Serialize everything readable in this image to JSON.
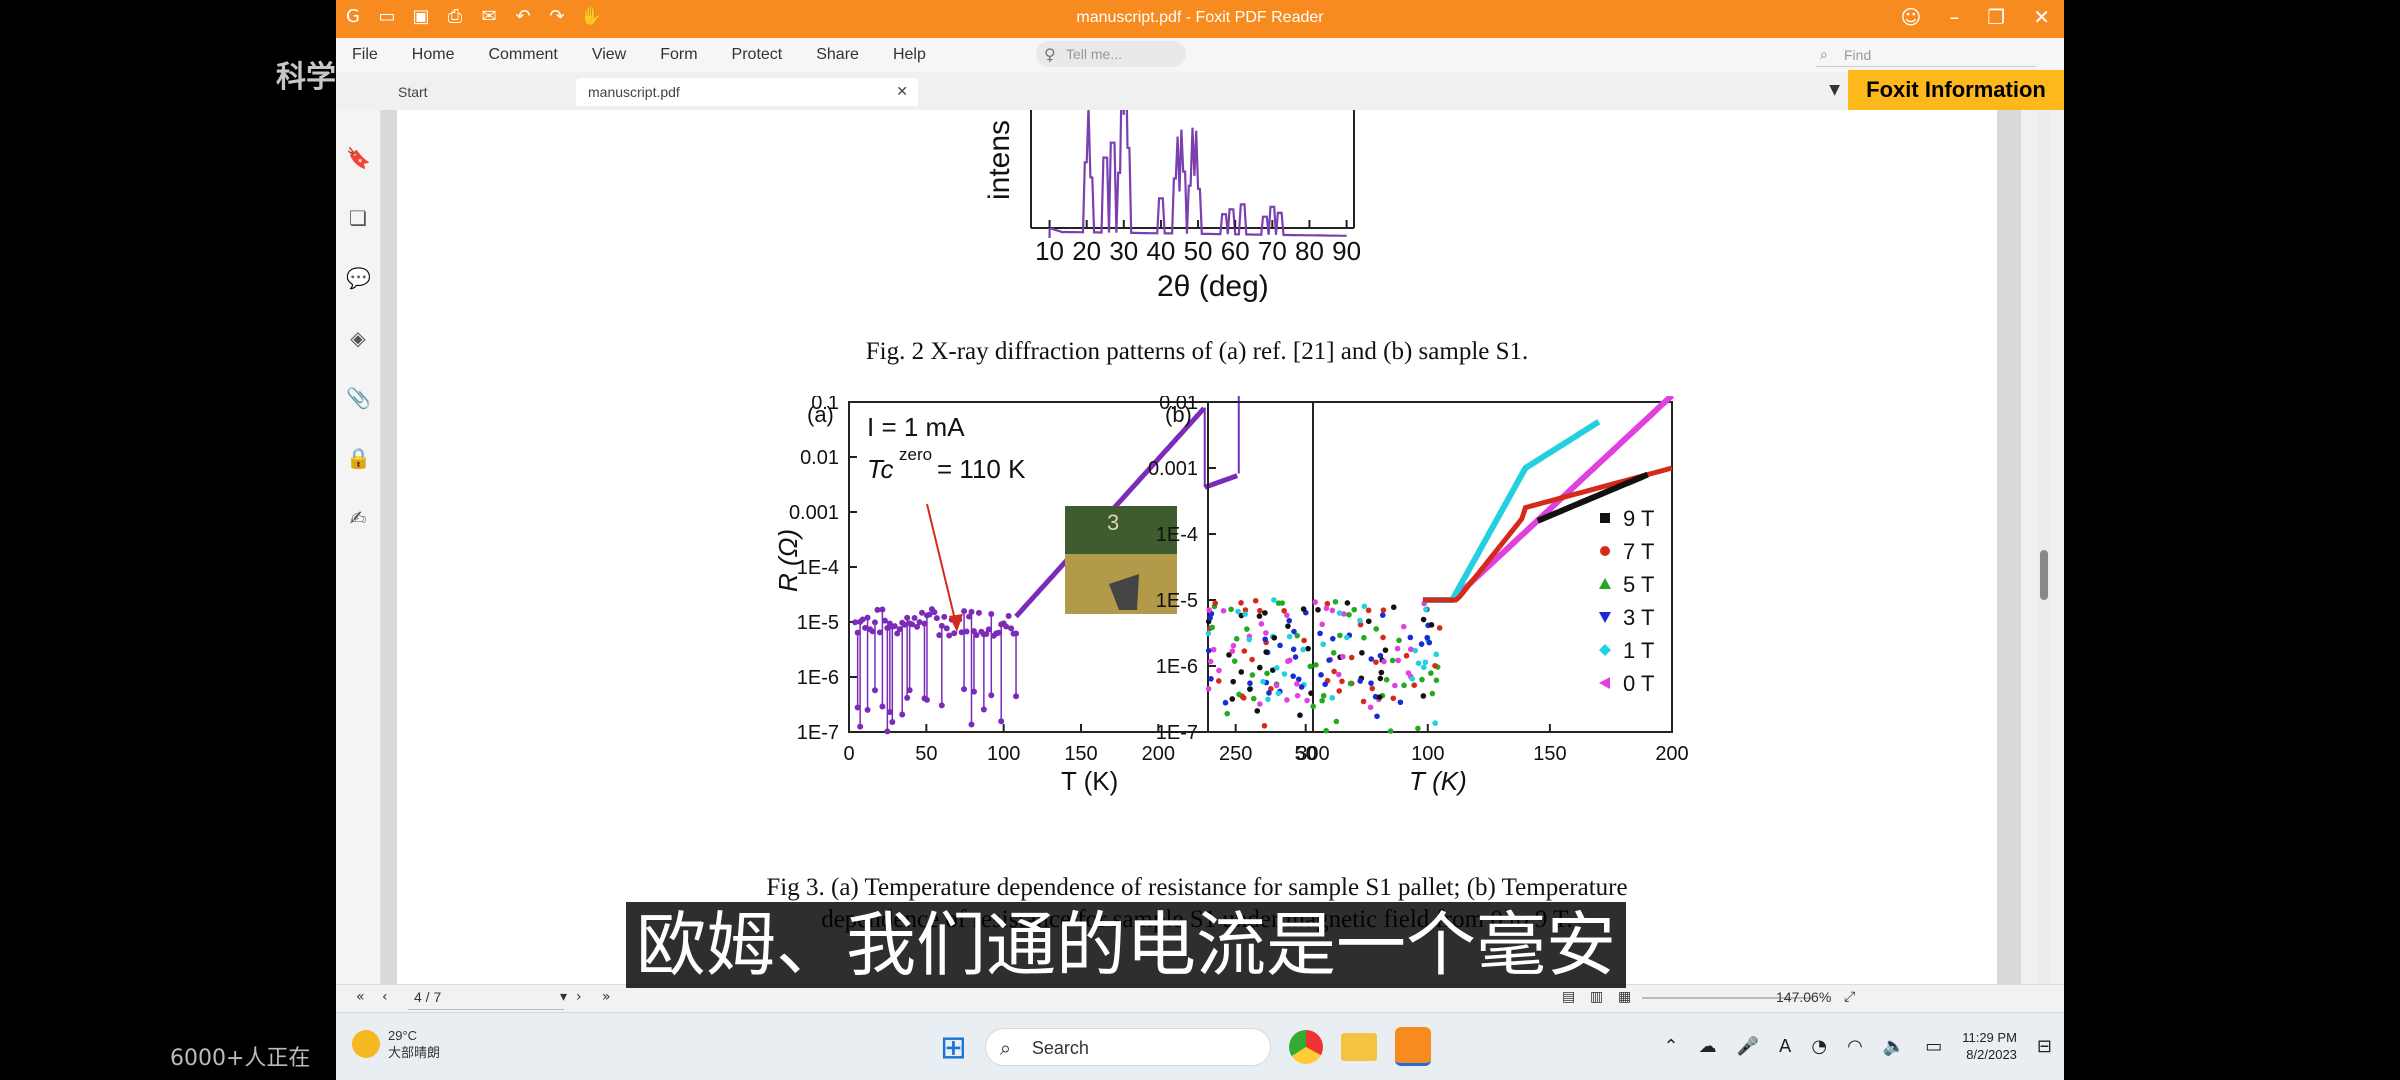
{
  "window": {
    "title": "manuscript.pdf - Foxit PDF Reader"
  },
  "menu": {
    "items": [
      "File",
      "Home",
      "Comment",
      "View",
      "Form",
      "Protect",
      "Share",
      "Help"
    ],
    "tell_me": "Tell me...",
    "find": "Find"
  },
  "tabs": {
    "start": "Start",
    "doc": "manuscript.pdf",
    "info_banner": "Foxit Information"
  },
  "xrd": {
    "ylabel": "intens",
    "xlabel": "2θ (deg)",
    "ticks": [
      "10",
      "20",
      "30",
      "40",
      "50",
      "60",
      "70",
      "80",
      "90"
    ]
  },
  "fig2_caption": "Fig. 2 X-ray diffraction patterns of (a) ref. [21] and (b) sample S1.",
  "fig3a": {
    "panel": "(a)",
    "current_label": "I = 1 mA",
    "tc_label": "Tc",
    "tc_sup": "zero",
    "tc_value": "= 110 K",
    "ylabel": "R (Ω)",
    "xlabel": "T (K)",
    "yticks": [
      "0.1",
      "0.01",
      "0.001",
      "1E-4",
      "1E-5",
      "1E-6",
      "1E-7"
    ],
    "xticks": [
      "0",
      "50",
      "100",
      "150",
      "200",
      "250",
      "300"
    ],
    "inset_label": "3"
  },
  "fig3b": {
    "panel": "(b)",
    "xlabel": "T (K)",
    "yticks": [
      "0.01",
      "0.001",
      "1E-4",
      "1E-5",
      "1E-6",
      "1E-7"
    ],
    "xticks": [
      "50",
      "100",
      "150",
      "200"
    ],
    "legend": [
      {
        "label": "9 T",
        "color": "#111111",
        "marker": "square"
      },
      {
        "label": "7 T",
        "color": "#d42a1a",
        "marker": "circle"
      },
      {
        "label": "5 T",
        "color": "#22aa22",
        "marker": "triangle-up"
      },
      {
        "label": "3 T",
        "color": "#1a2ad4",
        "marker": "triangle-down"
      },
      {
        "label": "1 T",
        "color": "#22d0e0",
        "marker": "diamond"
      },
      {
        "label": "0 T",
        "color": "#e040e0",
        "marker": "triangle-left"
      }
    ]
  },
  "fig3_caption_line1": "Fig 3. (a) Temperature dependence of resistance for sample S1 pallet; (b) Temperature",
  "fig3_caption_line2": "dependence of resistance for sample S1 under magnetic field from 0 to 9 T.",
  "status": {
    "page": "4 / 7",
    "zoom": "147.06%"
  },
  "taskbar": {
    "weather_temp": "29°C",
    "weather_desc": "大部晴朗",
    "search": "Search",
    "time": "11:29 PM",
    "date": "8/2/2023"
  },
  "overlay": {
    "subtitle": "欧姆、我们通的电流是一个毫安",
    "watermark": "科学",
    "viewers": "6000+人正在"
  },
  "colors": {
    "titlebar": "#f78b1f",
    "banner": "#ffb81c",
    "xrd_line": "#7b3fb0",
    "fig3a_data": "#7b2bb8"
  }
}
